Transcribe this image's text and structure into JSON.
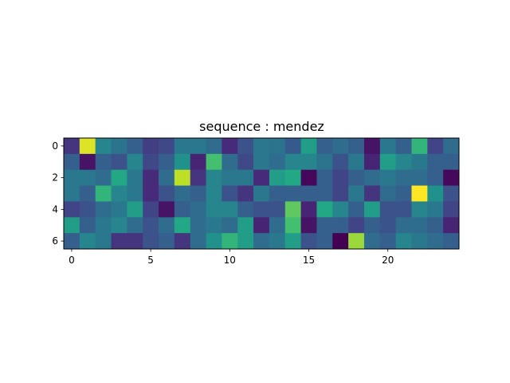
{
  "chart_data": {
    "type": "heatmap",
    "title": "sequence : mendez",
    "xlabel": "",
    "ylabel": "",
    "colormap": "viridis",
    "vmin": 0,
    "vmax": 1,
    "grid": false,
    "xlim": [
      -0.5,
      24.5
    ],
    "ylim": [
      6.5,
      -0.5
    ],
    "xticks": [
      0,
      5,
      10,
      15,
      20
    ],
    "yticks": [
      0,
      2,
      4,
      6
    ],
    "rows": 7,
    "cols": 25,
    "values": [
      [
        0.15,
        0.95,
        0.45,
        0.38,
        0.3,
        0.18,
        0.22,
        0.4,
        0.4,
        0.35,
        0.12,
        0.25,
        0.4,
        0.38,
        0.28,
        0.55,
        0.3,
        0.35,
        0.3,
        0.05,
        0.4,
        0.3,
        0.65,
        0.2,
        0.35
      ],
      [
        0.3,
        0.05,
        0.3,
        0.25,
        0.45,
        0.22,
        0.3,
        0.5,
        0.1,
        0.7,
        0.35,
        0.22,
        0.4,
        0.35,
        0.45,
        0.45,
        0.38,
        0.25,
        0.4,
        0.1,
        0.55,
        0.45,
        0.4,
        0.3,
        0.3
      ],
      [
        0.4,
        0.4,
        0.35,
        0.6,
        0.4,
        0.12,
        0.35,
        0.9,
        0.15,
        0.45,
        0.4,
        0.4,
        0.12,
        0.55,
        0.6,
        0.02,
        0.3,
        0.2,
        0.3,
        0.35,
        0.4,
        0.35,
        0.35,
        0.3,
        0.02
      ],
      [
        0.4,
        0.3,
        0.65,
        0.45,
        0.4,
        0.12,
        0.25,
        0.35,
        0.3,
        0.45,
        0.25,
        0.15,
        0.4,
        0.3,
        0.3,
        0.3,
        0.3,
        0.2,
        0.4,
        0.15,
        0.35,
        0.3,
        1.0,
        0.5,
        0.25
      ],
      [
        0.2,
        0.25,
        0.35,
        0.4,
        0.55,
        0.2,
        0.05,
        0.3,
        0.35,
        0.45,
        0.45,
        0.3,
        0.25,
        0.25,
        0.75,
        0.1,
        0.6,
        0.45,
        0.3,
        0.55,
        0.25,
        0.25,
        0.45,
        0.4,
        0.2
      ],
      [
        0.55,
        0.3,
        0.4,
        0.45,
        0.35,
        0.25,
        0.35,
        0.6,
        0.35,
        0.4,
        0.35,
        0.55,
        0.1,
        0.35,
        0.7,
        0.05,
        0.3,
        0.3,
        0.2,
        0.3,
        0.25,
        0.35,
        0.35,
        0.3,
        0.1
      ],
      [
        0.3,
        0.45,
        0.4,
        0.15,
        0.15,
        0.25,
        0.3,
        0.15,
        0.35,
        0.5,
        0.65,
        0.55,
        0.35,
        0.4,
        0.55,
        0.25,
        0.3,
        0.0,
        0.85,
        0.35,
        0.3,
        0.45,
        0.4,
        0.35,
        0.3
      ]
    ]
  }
}
